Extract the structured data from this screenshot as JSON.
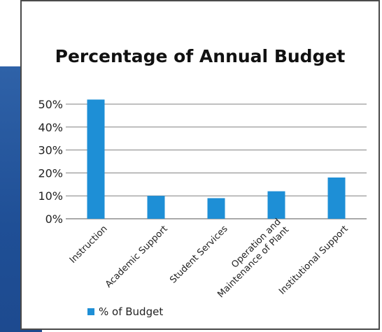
{
  "chart_data": {
    "type": "bar",
    "title": "Percentage of Annual Budget",
    "categories": [
      "Instruction",
      "Academic Support",
      "Student Services",
      "Operation and\nMaintenance of Plant",
      "Institutional Support"
    ],
    "series": [
      {
        "name": "% of Budget",
        "values": [
          52,
          10,
          9,
          12,
          18
        ],
        "color": "#1e8fd6"
      }
    ],
    "y_ticks": [
      "0%",
      "10%",
      "20%",
      "30%",
      "40%",
      "50%"
    ],
    "ylim": [
      0,
      50
    ],
    "grid": true,
    "legend_position": "bottom-left",
    "xlabel": "",
    "ylabel": ""
  },
  "colors": {
    "accent_stripe": "#2358a3",
    "bar": "#1e8fd6",
    "grid": "#808080"
  }
}
